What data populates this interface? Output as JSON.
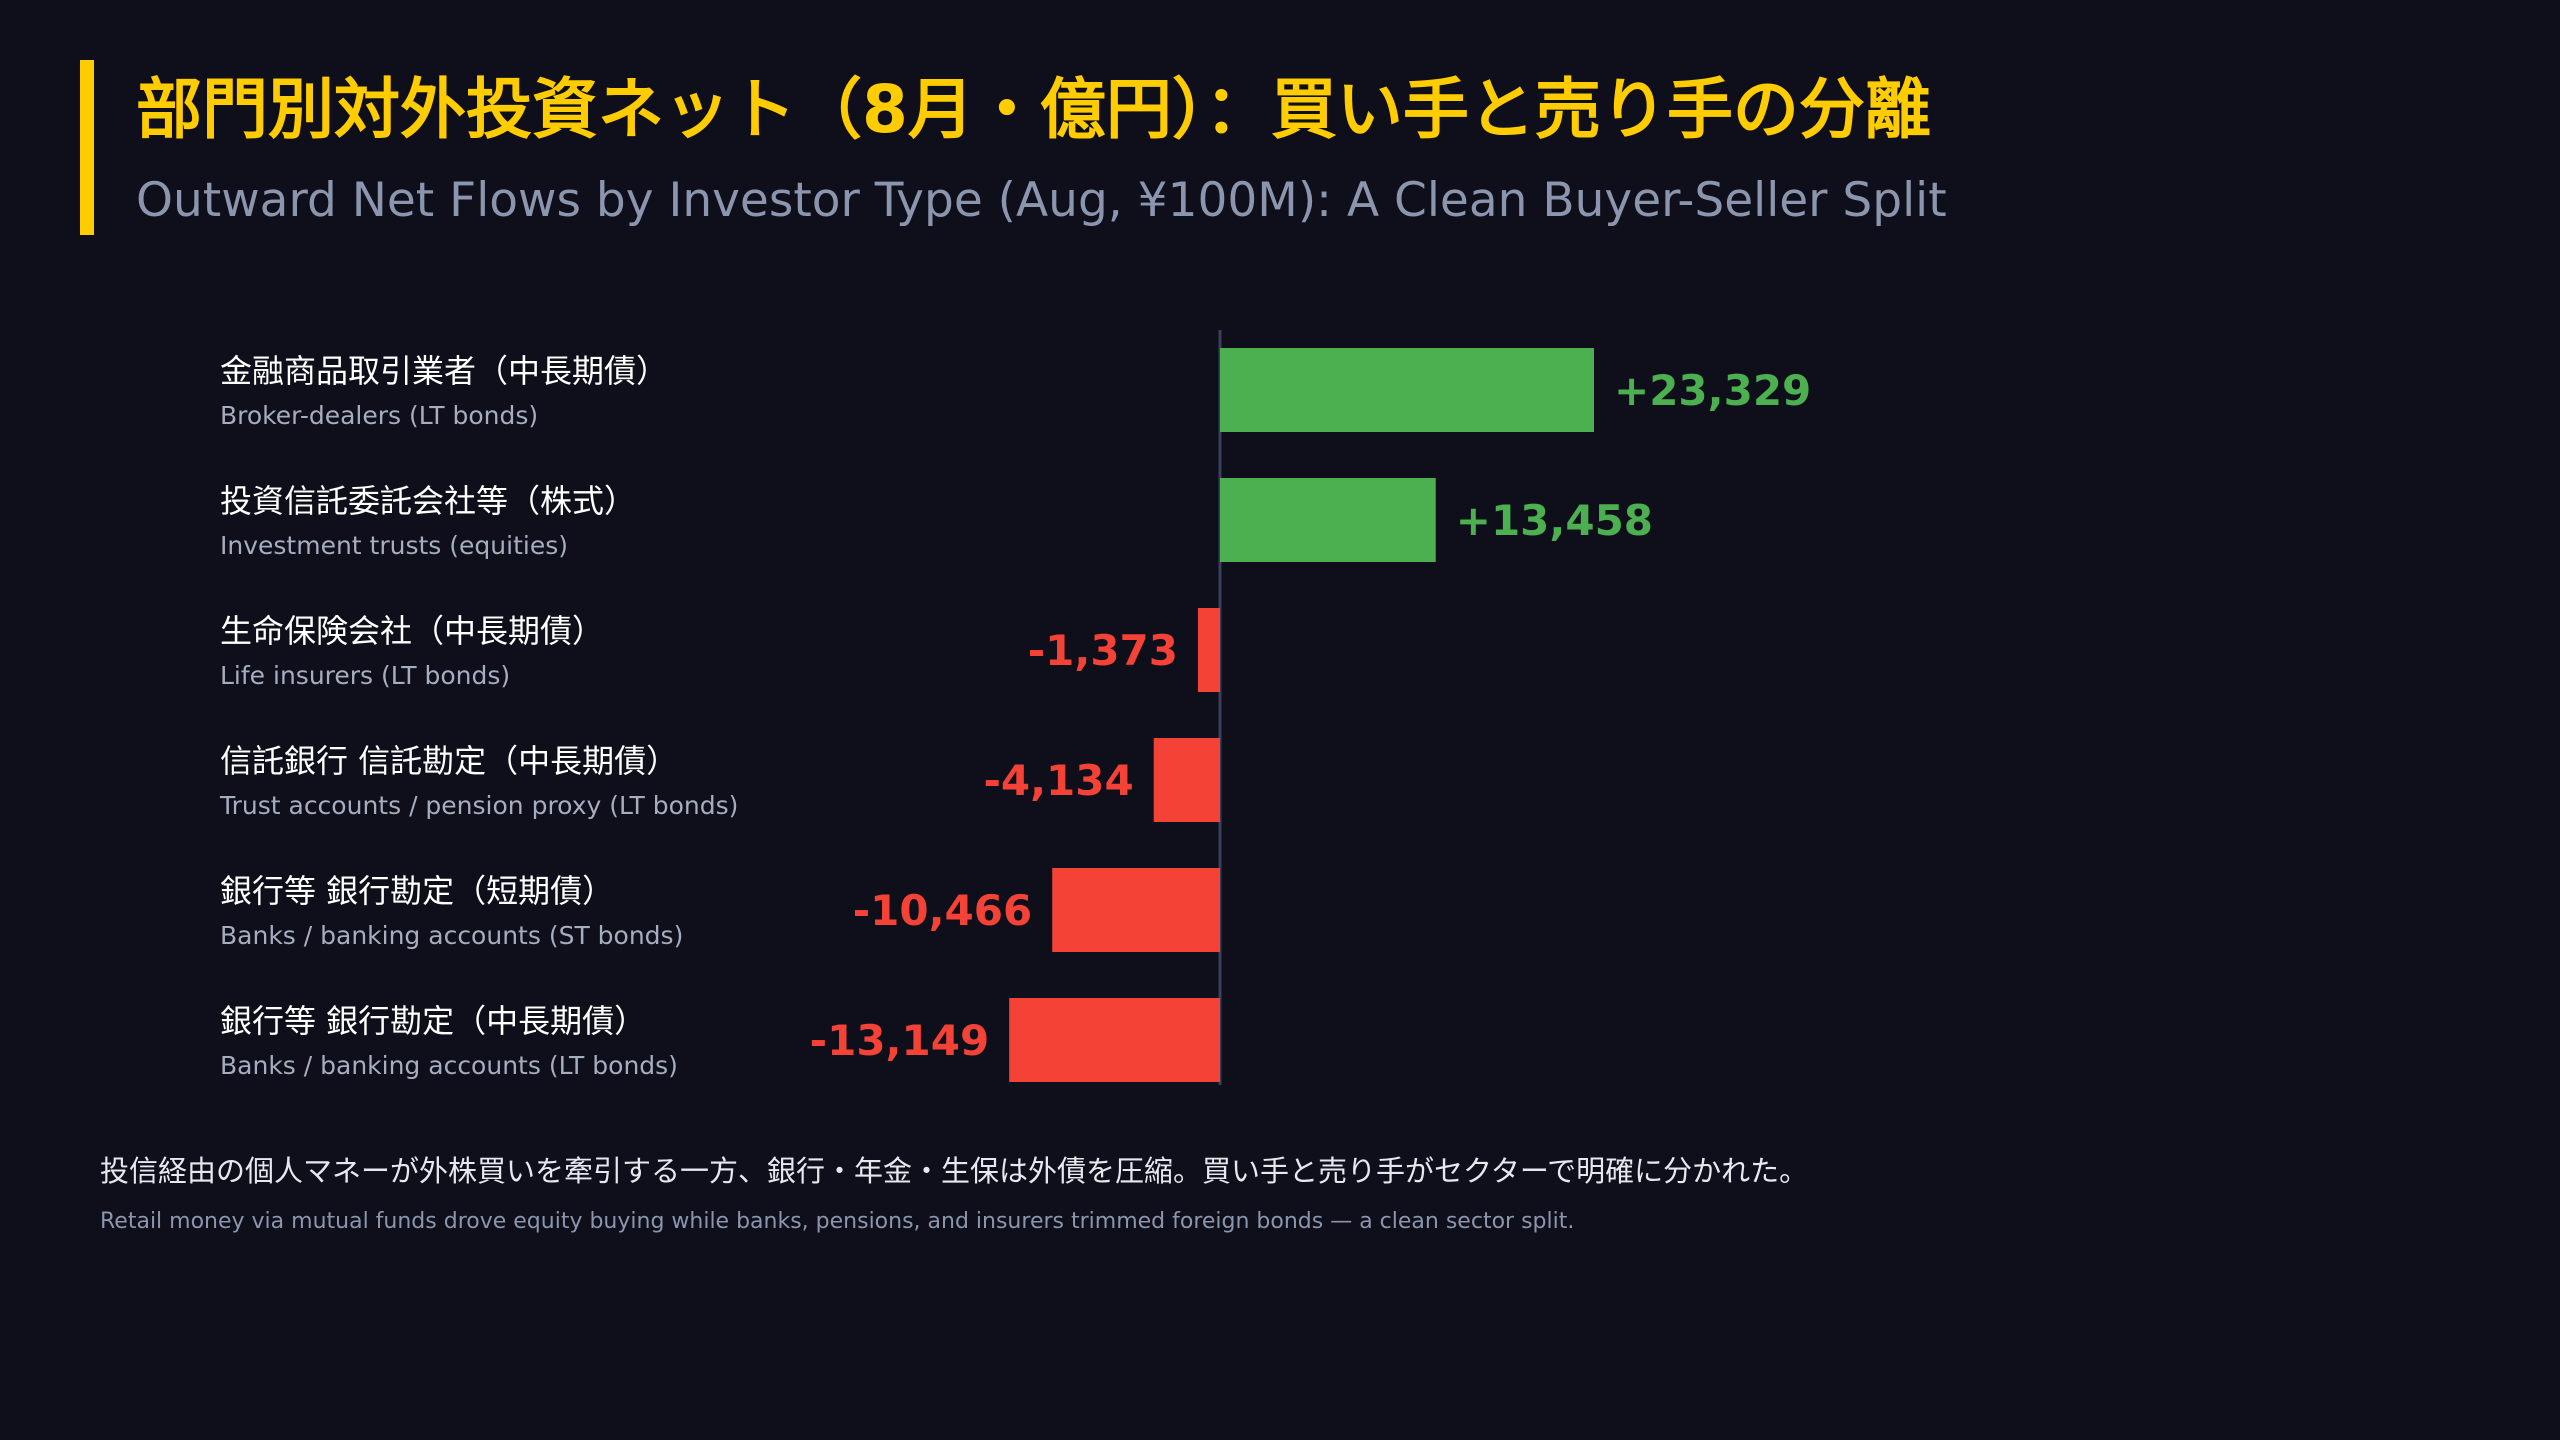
{
  "colors": {
    "background": "#0e0f1a",
    "accent": "#ffcc00",
    "positive": "#4caf50",
    "negative": "#f44336",
    "axis": "#3a3f5c",
    "label_primary": "#ffffff",
    "label_secondary": "#a6adbf"
  },
  "header": {
    "title": "部門別対外投資ネット（8月・億円）：買い手と売り手の分離",
    "subtitle": "Outward Net Flows by Investor Type (Aug, ¥100M): A Clean Buyer-Seller Split"
  },
  "chart_data": {
    "type": "bar",
    "orientation": "horizontal",
    "categories": [
      "金融商品取引業者（中長期債）",
      "投資信託委託会社等（株式）",
      "生命保険会社（中長期債）",
      "信託銀行 信託勘定（中長期債）",
      "銀行等 銀行勘定（短期債）",
      "銀行等 銀行勘定（中長期債）"
    ],
    "categories_en": [
      "Broker-dealers (LT bonds)",
      "Investment trusts (equities)",
      "Life insurers (LT bonds)",
      "Trust accounts / pension proxy (LT bonds)",
      "Banks / banking accounts (ST bonds)",
      "Banks / banking accounts (LT bonds)"
    ],
    "values": [
      23329,
      13458,
      -1373,
      -4134,
      -10466,
      -13149
    ],
    "value_labels": [
      "+23,329",
      "+13,458",
      "-1,373",
      "-4,134",
      "-10,466",
      "-13,149"
    ],
    "xlim": [
      -13149,
      23329
    ],
    "grid": false,
    "legend": "none"
  },
  "footnote": {
    "jp": "投信経由の個人マネーが外株買いを牽引する一方、銀行・年金・生保は外債を圧縮。買い手と売り手がセクターで明確に分かれた。",
    "en": "Retail money via mutual funds drove equity buying while banks, pensions, and insurers trimmed foreign bonds — a clean sector split."
  }
}
